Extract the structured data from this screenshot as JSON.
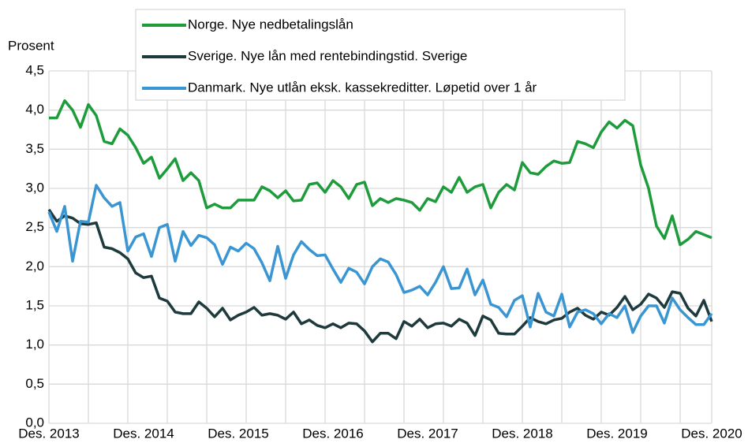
{
  "chart_data": {
    "type": "line",
    "y_label": "Prosent",
    "categories": [
      "Des. 2013",
      null,
      null,
      null,
      null,
      null,
      null,
      null,
      null,
      null,
      null,
      null,
      "Des. 2014",
      null,
      null,
      null,
      null,
      null,
      null,
      null,
      null,
      null,
      null,
      null,
      "Des. 2015",
      null,
      null,
      null,
      null,
      null,
      null,
      null,
      null,
      null,
      null,
      null,
      "Des. 2016",
      null,
      null,
      null,
      null,
      null,
      null,
      null,
      null,
      null,
      null,
      null,
      "Des. 2017",
      null,
      null,
      null,
      null,
      null,
      null,
      null,
      null,
      null,
      null,
      null,
      "Des. 2018",
      null,
      null,
      null,
      null,
      null,
      null,
      null,
      null,
      null,
      null,
      null,
      "Des. 2019",
      null,
      null,
      null,
      null,
      null,
      null,
      null,
      null,
      null,
      null,
      null,
      "Des. 2020"
    ],
    "series": [
      {
        "name": "Norge. Nye nedbetalingslån",
        "color": "#1e9c3c",
        "values": [
          3.9,
          3.9,
          4.12,
          4.0,
          3.78,
          4.07,
          3.93,
          3.6,
          3.57,
          3.76,
          3.68,
          3.52,
          3.32,
          3.4,
          3.13,
          3.25,
          3.38,
          3.1,
          3.2,
          3.1,
          2.75,
          2.8,
          2.75,
          2.75,
          2.85,
          2.85,
          2.85,
          3.02,
          2.97,
          2.88,
          2.97,
          2.84,
          2.85,
          3.05,
          3.07,
          2.95,
          3.1,
          3.02,
          2.87,
          3.05,
          3.08,
          2.78,
          2.87,
          2.82,
          2.87,
          2.85,
          2.82,
          2.72,
          2.87,
          2.83,
          3.02,
          2.95,
          3.14,
          2.95,
          3.02,
          3.05,
          2.75,
          2.95,
          3.05,
          2.98,
          3.33,
          3.2,
          3.18,
          3.28,
          3.35,
          3.32,
          3.33,
          3.6,
          3.57,
          3.52,
          3.72,
          3.85,
          3.77,
          3.87,
          3.8,
          3.3,
          3.0,
          2.52,
          2.36,
          2.65,
          2.28,
          2.35,
          2.45,
          2.41,
          2.37
        ]
      },
      {
        "name": "Sverige. Nye lån med rentebindingstid. Sverige",
        "color": "#1f3a3d",
        "values": [
          2.73,
          2.58,
          2.65,
          2.62,
          2.55,
          2.54,
          2.56,
          2.25,
          2.23,
          2.18,
          2.1,
          1.92,
          1.86,
          1.88,
          1.6,
          1.56,
          1.42,
          1.4,
          1.4,
          1.55,
          1.47,
          1.36,
          1.47,
          1.32,
          1.38,
          1.42,
          1.48,
          1.38,
          1.4,
          1.38,
          1.33,
          1.42,
          1.27,
          1.32,
          1.25,
          1.22,
          1.27,
          1.22,
          1.28,
          1.27,
          1.18,
          1.04,
          1.15,
          1.15,
          1.08,
          1.3,
          1.24,
          1.33,
          1.22,
          1.27,
          1.28,
          1.24,
          1.33,
          1.28,
          1.12,
          1.37,
          1.32,
          1.15,
          1.14,
          1.14,
          1.24,
          1.35,
          1.3,
          1.27,
          1.32,
          1.34,
          1.42,
          1.47,
          1.38,
          1.33,
          1.42,
          1.38,
          1.48,
          1.62,
          1.45,
          1.52,
          1.65,
          1.6,
          1.48,
          1.68,
          1.66,
          1.47,
          1.37,
          1.57,
          1.3
        ]
      },
      {
        "name": "Danmark. Nye utlån eksk. kassekreditter. Løpetid over 1 år",
        "color": "#3a96d2",
        "values": [
          2.7,
          2.45,
          2.77,
          2.07,
          2.58,
          2.57,
          3.04,
          2.88,
          2.77,
          2.82,
          2.2,
          2.38,
          2.42,
          2.13,
          2.5,
          2.54,
          2.07,
          2.45,
          2.27,
          2.4,
          2.37,
          2.28,
          2.03,
          2.25,
          2.2,
          2.3,
          2.23,
          2.05,
          1.82,
          2.26,
          1.85,
          2.15,
          2.32,
          2.22,
          2.14,
          2.15,
          1.97,
          1.8,
          1.98,
          1.93,
          1.78,
          2.0,
          2.1,
          2.06,
          1.9,
          1.67,
          1.7,
          1.75,
          1.64,
          1.8,
          2.0,
          1.72,
          1.73,
          1.97,
          1.64,
          1.83,
          1.52,
          1.48,
          1.36,
          1.57,
          1.63,
          1.23,
          1.66,
          1.42,
          1.37,
          1.65,
          1.23,
          1.42,
          1.45,
          1.4,
          1.27,
          1.4,
          1.35,
          1.5,
          1.16,
          1.37,
          1.5,
          1.5,
          1.28,
          1.6,
          1.45,
          1.35,
          1.26,
          1.26,
          1.4
        ]
      }
    ],
    "ylim": [
      0,
      4.5
    ],
    "yticks": [
      {
        "value": 0,
        "label": "0,0"
      },
      {
        "value": 0.5,
        "label": "0,5"
      },
      {
        "value": 1,
        "label": "1,0"
      },
      {
        "value": 1.5,
        "label": "1,5"
      },
      {
        "value": 2,
        "label": "2,0"
      },
      {
        "value": 2.5,
        "label": "2,5"
      },
      {
        "value": 3,
        "label": "3,0"
      },
      {
        "value": 3.5,
        "label": "3,5"
      },
      {
        "value": 4,
        "label": "4,0"
      },
      {
        "value": 4.5,
        "label": "4,5"
      }
    ],
    "grid": true,
    "legend": "top"
  }
}
